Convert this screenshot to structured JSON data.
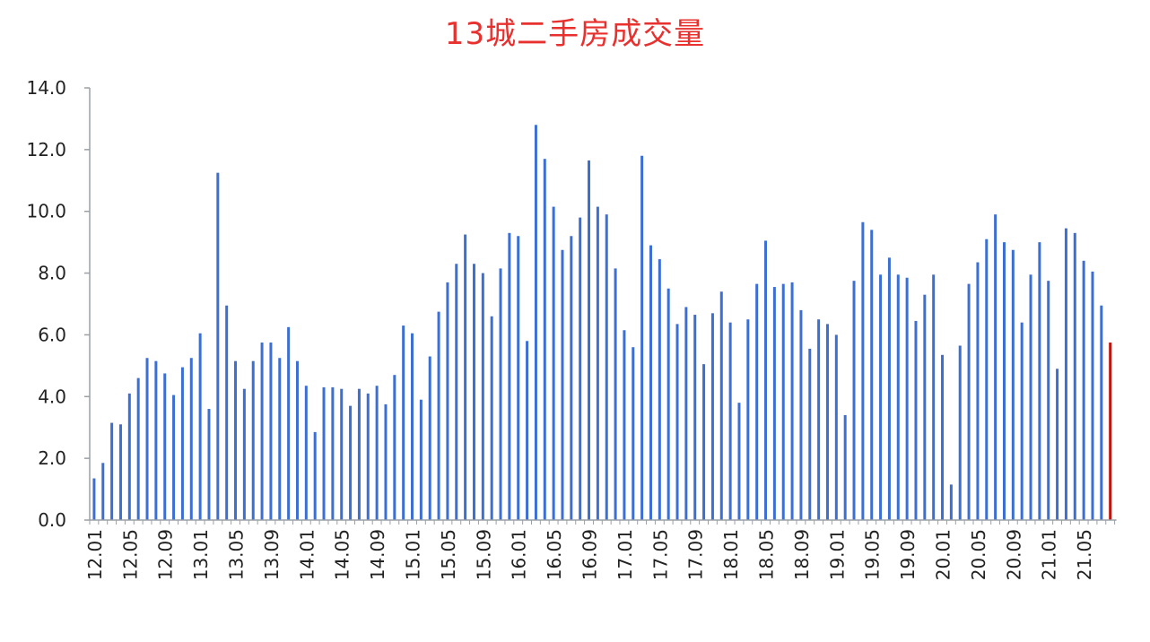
{
  "chart_data": {
    "type": "bar",
    "title": "13城二手房成交量",
    "xlabel": "",
    "ylabel": "",
    "ylim": [
      0,
      14
    ],
    "yticks": [
      "0.0",
      "2.0",
      "4.0",
      "6.0",
      "8.0",
      "10.0",
      "12.0",
      "14.0"
    ],
    "grid": false,
    "legend": "none",
    "colors": {
      "bar": "#3b6fd4",
      "last_bar": "#c0140f",
      "axis": "#9aa0a6"
    },
    "categories": [
      "12.01",
      "12.02",
      "12.03",
      "12.04",
      "12.05",
      "12.06",
      "12.07",
      "12.08",
      "12.09",
      "12.10",
      "12.11",
      "12.12",
      "13.01",
      "13.02",
      "13.03",
      "13.04",
      "13.05",
      "13.06",
      "13.07",
      "13.08",
      "13.09",
      "13.10",
      "13.11",
      "13.12",
      "14.01",
      "14.02",
      "14.03",
      "14.04",
      "14.05",
      "14.06",
      "14.07",
      "14.08",
      "14.09",
      "14.10",
      "14.11",
      "14.12",
      "15.01",
      "15.02",
      "15.03",
      "15.04",
      "15.05",
      "15.06",
      "15.07",
      "15.08",
      "15.09",
      "15.10",
      "15.11",
      "15.12",
      "16.01",
      "16.02",
      "16.03",
      "16.04",
      "16.05",
      "16.06",
      "16.07",
      "16.08",
      "16.09",
      "16.10",
      "16.11",
      "16.12",
      "17.01",
      "17.02",
      "17.03",
      "17.04",
      "17.05",
      "17.06",
      "17.07",
      "17.08",
      "17.09",
      "17.10",
      "17.11",
      "17.12",
      "18.01",
      "18.02",
      "18.03",
      "18.04",
      "18.05",
      "18.06",
      "18.07",
      "18.08",
      "18.09",
      "18.10",
      "18.11",
      "18.12",
      "19.01",
      "19.02",
      "19.03",
      "19.04",
      "19.05",
      "19.06",
      "19.07",
      "19.08",
      "19.09",
      "19.10",
      "19.11",
      "19.12",
      "20.01",
      "20.02",
      "20.03",
      "20.04",
      "20.05",
      "20.06",
      "20.07",
      "20.08",
      "20.09",
      "20.10",
      "20.11",
      "20.12",
      "21.01",
      "21.02",
      "21.03",
      "21.04",
      "21.05",
      "21.06",
      "21.07",
      "21.08"
    ],
    "xtick_labels": [
      "12.01",
      "12.05",
      "12.09",
      "13.01",
      "13.05",
      "13.09",
      "14.01",
      "14.05",
      "14.09",
      "15.01",
      "15.05",
      "15.09",
      "16.01",
      "16.05",
      "16.09",
      "17.01",
      "17.05",
      "17.09",
      "18.01",
      "18.05",
      "18.09",
      "19.01",
      "19.05",
      "19.09",
      "20.01",
      "20.05",
      "20.09",
      "21.01",
      "21.05"
    ],
    "values": [
      1.35,
      1.85,
      3.15,
      3.1,
      4.1,
      4.6,
      5.25,
      5.15,
      4.75,
      4.05,
      4.95,
      5.25,
      6.05,
      3.6,
      11.25,
      6.95,
      5.15,
      4.25,
      5.15,
      5.75,
      5.75,
      5.25,
      6.25,
      5.15,
      4.35,
      2.85,
      4.3,
      4.3,
      4.25,
      3.7,
      4.25,
      4.1,
      4.35,
      3.75,
      4.7,
      6.3,
      6.05,
      3.9,
      5.3,
      6.75,
      7.7,
      8.3,
      9.25,
      8.3,
      8.0,
      6.6,
      8.15,
      9.3,
      9.2,
      5.8,
      12.8,
      11.7,
      10.15,
      8.75,
      9.2,
      9.8,
      11.65,
      10.15,
      9.9,
      8.15,
      6.15,
      5.6,
      11.8,
      8.9,
      8.45,
      7.5,
      6.35,
      6.9,
      6.65,
      5.05,
      6.7,
      7.4,
      6.4,
      3.8,
      6.5,
      7.65,
      9.05,
      7.55,
      7.65,
      7.7,
      6.8,
      5.55,
      6.5,
      6.35,
      6.0,
      3.4,
      7.75,
      9.65,
      9.4,
      7.95,
      8.5,
      7.95,
      7.85,
      6.45,
      7.3,
      7.95,
      5.35,
      1.15,
      5.65,
      7.65,
      8.35,
      9.1,
      9.9,
      9.0,
      8.75,
      6.4,
      7.95,
      9.0,
      7.75,
      4.9,
      9.45,
      9.3,
      8.4,
      8.05,
      6.95,
      5.75
    ]
  }
}
